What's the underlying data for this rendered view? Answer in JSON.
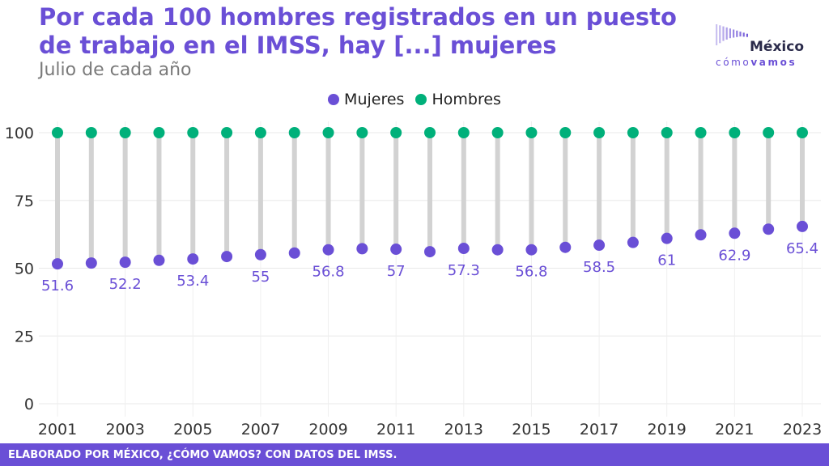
{
  "header": {
    "title": "Por cada 100 hombres registrados en un puesto de trabajo en el IMSS, hay [...] mujeres",
    "subtitle": "Julio de cada año"
  },
  "logo": {
    "main": "México",
    "sub_plain": "cómo",
    "sub_bold": "vamos",
    "bars_color": "#6a4fd6"
  },
  "footer": {
    "text": "ELABORADO POR MÉXICO, ¿CÓMO VAMOS? CON DATOS DEL IMSS."
  },
  "chart_data": {
    "type": "dumbbell",
    "x": [
      2001,
      2002,
      2003,
      2004,
      2005,
      2006,
      2007,
      2008,
      2009,
      2010,
      2011,
      2012,
      2013,
      2014,
      2015,
      2016,
      2017,
      2018,
      2019,
      2020,
      2021,
      2022,
      2023
    ],
    "series": [
      {
        "name": "Mujeres",
        "color": "#6a4fd6",
        "values": [
          51.6,
          51.9,
          52.2,
          52.9,
          53.4,
          54.3,
          55.0,
          55.6,
          56.8,
          57.2,
          57.0,
          56.1,
          57.3,
          56.8,
          56.8,
          57.7,
          58.5,
          59.5,
          61.0,
          62.3,
          62.9,
          64.4,
          65.4
        ]
      },
      {
        "name": "Hombres",
        "color": "#00b07a",
        "values": [
          100,
          100,
          100,
          100,
          100,
          100,
          100,
          100,
          100,
          100,
          100,
          100,
          100,
          100,
          100,
          100,
          100,
          100,
          100,
          100,
          100,
          100,
          100
        ]
      }
    ],
    "data_labels": [
      {
        "year": 2001,
        "text": "51.6"
      },
      {
        "year": 2003,
        "text": "52.2"
      },
      {
        "year": 2005,
        "text": "53.4"
      },
      {
        "year": 2007,
        "text": "55"
      },
      {
        "year": 2009,
        "text": "56.8"
      },
      {
        "year": 2011,
        "text": "57"
      },
      {
        "year": 2013,
        "text": "57.3"
      },
      {
        "year": 2015,
        "text": "56.8"
      },
      {
        "year": 2017,
        "text": "58.5"
      },
      {
        "year": 2019,
        "text": "61"
      },
      {
        "year": 2021,
        "text": "62.9"
      },
      {
        "year": 2023,
        "text": "65.4"
      }
    ],
    "xticks": [
      2001,
      2003,
      2005,
      2007,
      2009,
      2011,
      2013,
      2015,
      2017,
      2019,
      2021,
      2023
    ],
    "yticks": [
      0,
      25,
      50,
      75,
      100
    ],
    "ylim": [
      0,
      100
    ],
    "xlim": [
      2001,
      2023
    ],
    "grid": true,
    "legend_position": "top-center",
    "connector_color": "#d2d2d2"
  }
}
